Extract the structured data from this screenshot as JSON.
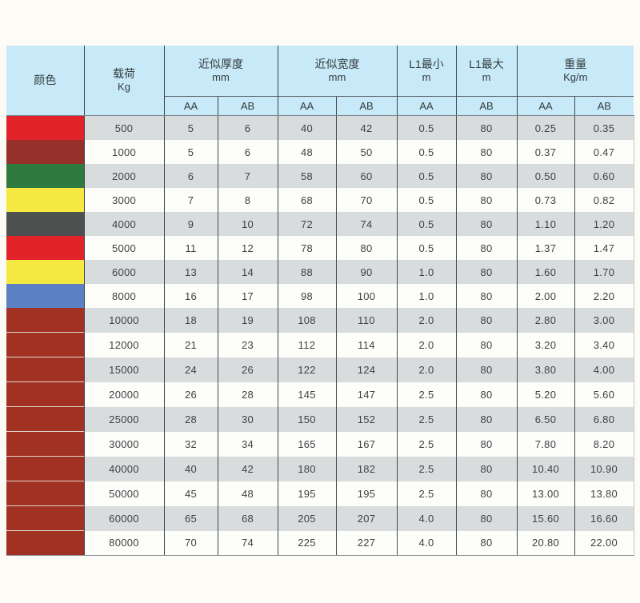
{
  "table": {
    "header": {
      "color": "颜色",
      "load_line1": "载荷",
      "load_line2": "Kg",
      "thickness_line1": "近似厚度",
      "thickness_line2": "mm",
      "width_line1": "近似宽度",
      "width_line2": "mm",
      "l1min_line1": "L1最小",
      "l1min_line2": "m",
      "l1max_line1": "L1最大",
      "l1max_line2": "m",
      "weight_line1": "重量",
      "weight_line2": "Kg/m",
      "subheaders": [
        "AA",
        "AB",
        "AA",
        "AB",
        "AA",
        "AB",
        "AA",
        "AB"
      ]
    },
    "palette": {
      "red": "#e2232a",
      "maroon": "#96302a",
      "green": "#2f7a3e",
      "yellow": "#f4e841",
      "darkgray": "#4d5251",
      "blue": "#5b81c4",
      "brick": "#a13122"
    },
    "header_bg": "#c8e9f7",
    "row_gray_bg": "#d9dcdc",
    "row_white_bg": "#fdfdfa",
    "rows": [
      {
        "swatch": "red",
        "cells": [
          "500",
          "5",
          "6",
          "40",
          "42",
          "0.5",
          "80",
          "0.25",
          "0.35"
        ]
      },
      {
        "swatch": "maroon",
        "cells": [
          "1000",
          "5",
          "6",
          "48",
          "50",
          "0.5",
          "80",
          "0.37",
          "0.47"
        ]
      },
      {
        "swatch": "green",
        "cells": [
          "2000",
          "6",
          "7",
          "58",
          "60",
          "0.5",
          "80",
          "0.50",
          "0.60"
        ]
      },
      {
        "swatch": "yellow",
        "cells": [
          "3000",
          "7",
          "8",
          "68",
          "70",
          "0.5",
          "80",
          "0.73",
          "0.82"
        ]
      },
      {
        "swatch": "darkgray",
        "cells": [
          "4000",
          "9",
          "10",
          "72",
          "74",
          "0.5",
          "80",
          "1.10",
          "1.20"
        ]
      },
      {
        "swatch": "red",
        "cells": [
          "5000",
          "11",
          "12",
          "78",
          "80",
          "0.5",
          "80",
          "1.37",
          "1.47"
        ]
      },
      {
        "swatch": "yellow",
        "cells": [
          "6000",
          "13",
          "14",
          "88",
          "90",
          "1.0",
          "80",
          "1.60",
          "1.70"
        ]
      },
      {
        "swatch": "blue",
        "cells": [
          "8000",
          "16",
          "17",
          "98",
          "100",
          "1.0",
          "80",
          "2.00",
          "2.20"
        ]
      },
      {
        "swatch": "brick",
        "cells": [
          "10000",
          "18",
          "19",
          "108",
          "110",
          "2.0",
          "80",
          "2.80",
          "3.00"
        ]
      },
      {
        "swatch": "brick",
        "cells": [
          "12000",
          "21",
          "23",
          "112",
          "114",
          "2.0",
          "80",
          "3.20",
          "3.40"
        ]
      },
      {
        "swatch": "brick",
        "cells": [
          "15000",
          "24",
          "26",
          "122",
          "124",
          "2.0",
          "80",
          "3.80",
          "4.00"
        ]
      },
      {
        "swatch": "brick",
        "cells": [
          "20000",
          "26",
          "28",
          "145",
          "147",
          "2.5",
          "80",
          "5.20",
          "5.60"
        ]
      },
      {
        "swatch": "brick",
        "cells": [
          "25000",
          "28",
          "30",
          "150",
          "152",
          "2.5",
          "80",
          "6.50",
          "6.80"
        ]
      },
      {
        "swatch": "brick",
        "cells": [
          "30000",
          "32",
          "34",
          "165",
          "167",
          "2.5",
          "80",
          "7.80",
          "8.20"
        ]
      },
      {
        "swatch": "brick",
        "cells": [
          "40000",
          "40",
          "42",
          "180",
          "182",
          "2.5",
          "80",
          "10.40",
          "10.90"
        ]
      },
      {
        "swatch": "brick",
        "cells": [
          "50000",
          "45",
          "48",
          "195",
          "195",
          "2.5",
          "80",
          "13.00",
          "13.80"
        ]
      },
      {
        "swatch": "brick",
        "cells": [
          "60000",
          "65",
          "68",
          "205",
          "207",
          "4.0",
          "80",
          "15.60",
          "16.60"
        ]
      },
      {
        "swatch": "brick",
        "cells": [
          "80000",
          "70",
          "74",
          "225",
          "227",
          "4.0",
          "80",
          "20.80",
          "22.00"
        ]
      }
    ],
    "cell_names": [
      "load-value",
      "thickness-aa-value",
      "thickness-ab-value",
      "width-aa-value",
      "width-ab-value",
      "l1-min-value",
      "l1-max-value",
      "weight-aa-value",
      "weight-ab-value"
    ]
  }
}
